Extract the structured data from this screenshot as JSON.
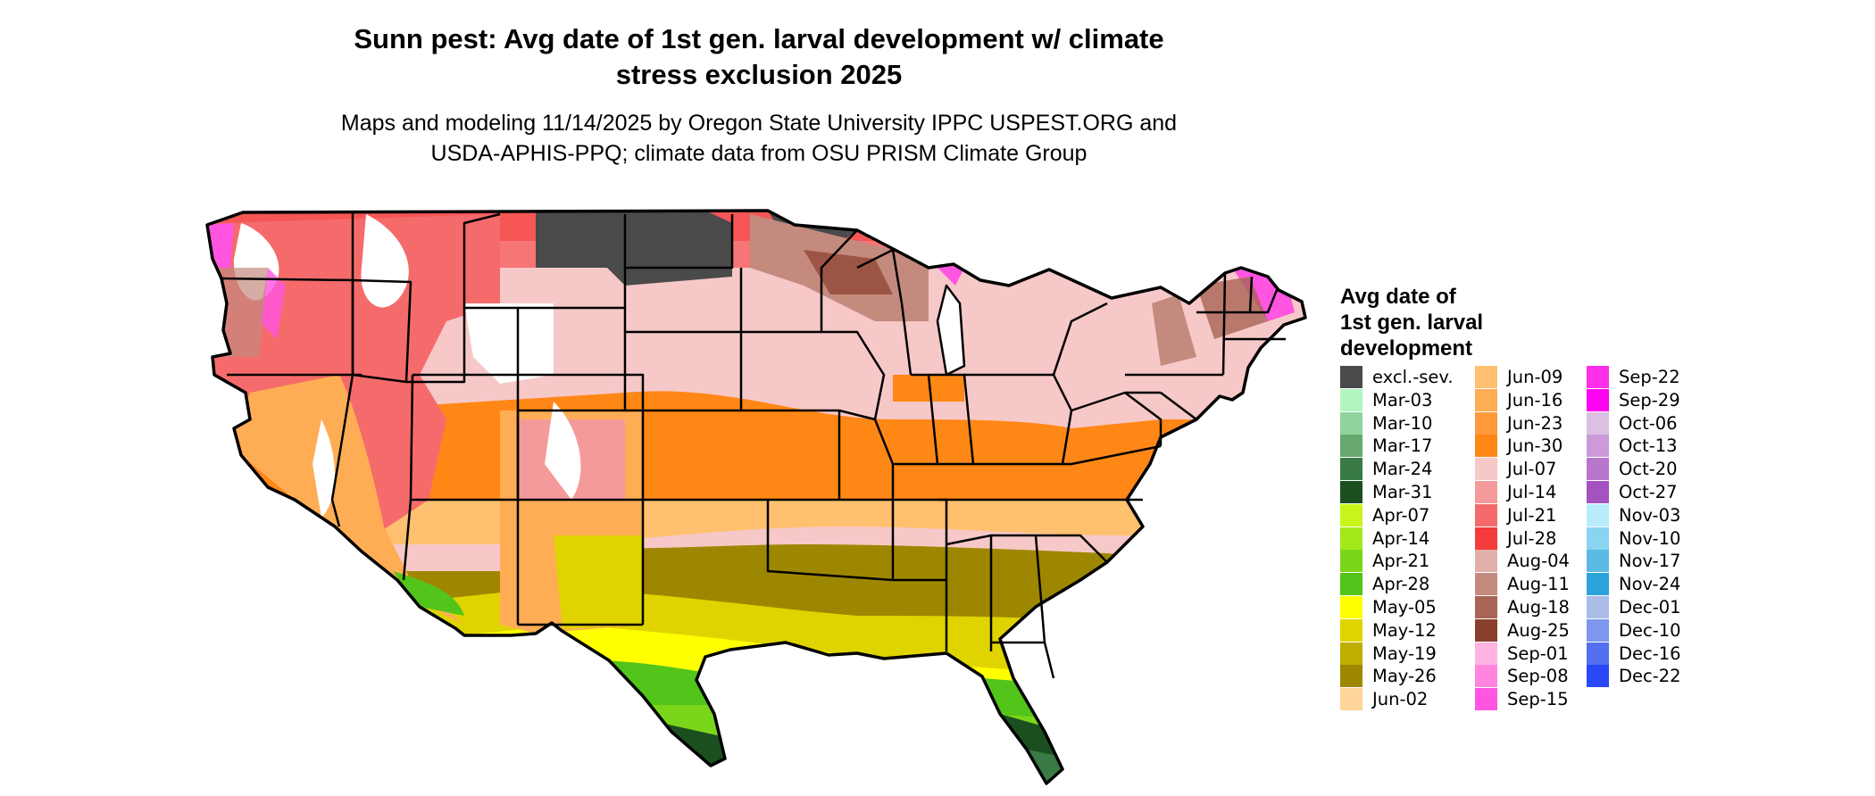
{
  "title": {
    "line1": "Sunn pest: Avg date of 1st gen. larval development w/ climate",
    "line2": "stress exclusion 2025"
  },
  "subtitle": {
    "line1": "Maps and modeling 11/14/2025 by Oregon State University IPPC USPEST.ORG and",
    "line2": "USDA-APHIS-PPQ; climate data from OSU PRISM Climate Group"
  },
  "legend": {
    "title_lines": [
      "Avg date of",
      "1st gen. larval",
      "development"
    ],
    "columns": [
      [
        {
          "label": "excl.-sev.",
          "color": "#4a4a4a"
        },
        {
          "label": "Mar-03",
          "color": "#b3f5c0"
        },
        {
          "label": "Mar-10",
          "color": "#8fd49c"
        },
        {
          "label": "Mar-17",
          "color": "#66a86e"
        },
        {
          "label": "Mar-24",
          "color": "#3a7a44"
        },
        {
          "label": "Mar-31",
          "color": "#1b4f1f"
        },
        {
          "label": "Apr-07",
          "color": "#c8f51a"
        },
        {
          "label": "Apr-14",
          "color": "#a3e81a"
        },
        {
          "label": "Apr-21",
          "color": "#7ad61a"
        },
        {
          "label": "Apr-28",
          "color": "#52c41a"
        },
        {
          "label": "May-05",
          "color": "#ffff00"
        },
        {
          "label": "May-12",
          "color": "#dfd400"
        },
        {
          "label": "May-19",
          "color": "#bfae00"
        },
        {
          "label": "May-26",
          "color": "#9e8700"
        },
        {
          "label": "Jun-02",
          "color": "#ffd59a"
        }
      ],
      [
        {
          "label": "Jun-09",
          "color": "#ffc070"
        },
        {
          "label": "Jun-16",
          "color": "#ffad55"
        },
        {
          "label": "Jun-23",
          "color": "#ff9a3a"
        },
        {
          "label": "Jun-30",
          "color": "#ff8716"
        },
        {
          "label": "Jul-07",
          "color": "#f7c8c8"
        },
        {
          "label": "Jul-14",
          "color": "#f59a9a"
        },
        {
          "label": "Jul-21",
          "color": "#f56b6b"
        },
        {
          "label": "Jul-28",
          "color": "#f53c3c"
        },
        {
          "label": "Aug-04",
          "color": "#e0b0a8"
        },
        {
          "label": "Aug-11",
          "color": "#c48a7e"
        },
        {
          "label": "Aug-18",
          "color": "#a86454"
        },
        {
          "label": "Aug-25",
          "color": "#8b3f2e"
        },
        {
          "label": "Sep-01",
          "color": "#ffb3e0"
        },
        {
          "label": "Sep-08",
          "color": "#ff85df"
        },
        {
          "label": "Sep-15",
          "color": "#ff55e0"
        }
      ],
      [
        {
          "label": "Sep-22",
          "color": "#ff2ee8"
        },
        {
          "label": "Sep-29",
          "color": "#ff00f0"
        },
        {
          "label": "Oct-06",
          "color": "#dcc0e4"
        },
        {
          "label": "Oct-13",
          "color": "#cc9ad8"
        },
        {
          "label": "Oct-20",
          "color": "#b877cc"
        },
        {
          "label": "Oct-27",
          "color": "#a352c0"
        },
        {
          "label": "Nov-03",
          "color": "#b8ecfa"
        },
        {
          "label": "Nov-10",
          "color": "#8ad4f0"
        },
        {
          "label": "Nov-17",
          "color": "#5bbbe6"
        },
        {
          "label": "Nov-24",
          "color": "#2ba3dc"
        },
        {
          "label": "Dec-01",
          "color": "#a9bde8"
        },
        {
          "label": "Dec-10",
          "color": "#7d97ec"
        },
        {
          "label": "Dec-16",
          "color": "#5270f0"
        },
        {
          "label": "Dec-22",
          "color": "#2a48f8"
        }
      ]
    ]
  }
}
